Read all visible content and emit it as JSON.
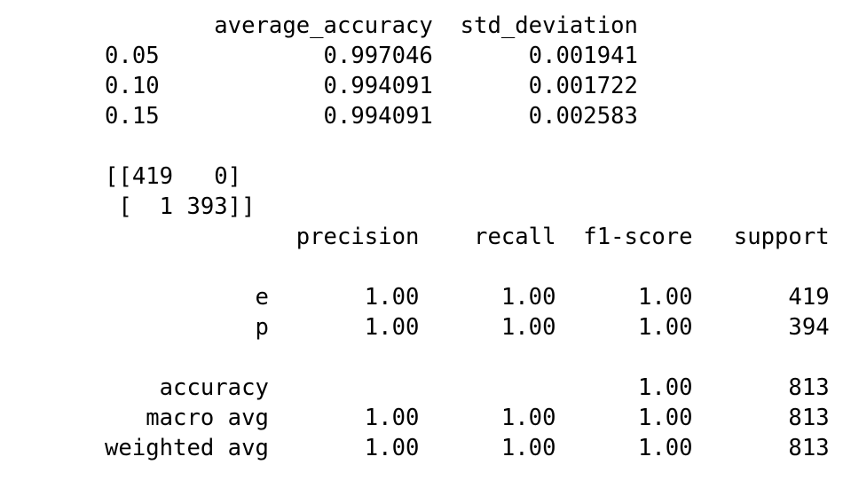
{
  "output": {
    "lines": [
      "        average_accuracy  std_deviation",
      "0.05            0.997046       0.001941",
      "0.10            0.994091       0.001722",
      "0.15            0.994091       0.002583",
      "",
      "[[419   0]",
      " [  1 393]]",
      "              precision    recall  f1-score   support",
      "",
      "           e       1.00      1.00      1.00       419",
      "           p       1.00      1.00      1.00       394",
      "",
      "    accuracy                           1.00       813",
      "   macro avg       1.00      1.00      1.00       813",
      "weighted avg       1.00      1.00      1.00       813"
    ]
  }
}
